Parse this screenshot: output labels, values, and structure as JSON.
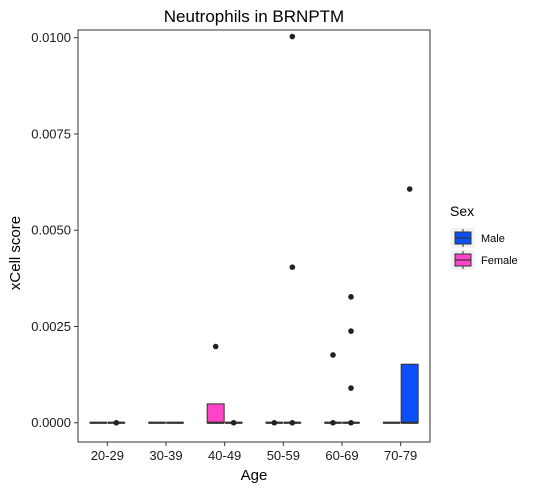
{
  "chart_data": {
    "type": "boxplot",
    "title": "Neutrophils in BRNPTM",
    "xlabel": "Age",
    "ylabel": "xCell score",
    "categories": [
      "20-29",
      "30-39",
      "40-49",
      "50-59",
      "60-69",
      "70-79"
    ],
    "ylim": [
      -0.0005,
      0.0102
    ],
    "yticks": [
      0.0,
      0.0025,
      0.005,
      0.0075,
      0.01
    ],
    "ytick_labels": [
      "0.0000",
      "0.0025",
      "0.0050",
      "0.0075",
      "0.0100"
    ],
    "grid": false,
    "legend": {
      "title": "Sex",
      "placement": "right",
      "entries": [
        {
          "name": "Male",
          "color": "#0B4FFF"
        },
        {
          "name": "Female",
          "color": "#FF44C8"
        }
      ]
    },
    "series": [
      {
        "name": "Female",
        "color": "#FF44C8",
        "boxes": [
          {
            "category": "20-29",
            "q1": 0,
            "median": 0,
            "q3": 0,
            "whisker_low": 0,
            "whisker_high": 0,
            "outliers": []
          },
          {
            "category": "30-39",
            "q1": 0,
            "median": 0,
            "q3": 0,
            "whisker_low": 0,
            "whisker_high": 0,
            "outliers": []
          },
          {
            "category": "40-49",
            "q1": 0,
            "median": 0,
            "q3": 0.00049,
            "whisker_low": 0,
            "whisker_high": 0.00049,
            "outliers": [
              0.00198
            ]
          },
          {
            "category": "50-59",
            "q1": 0,
            "median": 0,
            "q3": 0,
            "whisker_low": 0,
            "whisker_high": 0,
            "outliers": [
              0
            ]
          },
          {
            "category": "60-69",
            "q1": 0,
            "median": 0,
            "q3": 0,
            "whisker_low": 0,
            "whisker_high": 0,
            "outliers": [
              0.00176,
              0
            ]
          },
          {
            "category": "70-79",
            "q1": 0,
            "median": 0,
            "q3": 0,
            "whisker_low": 0,
            "whisker_high": 0,
            "outliers": []
          }
        ]
      },
      {
        "name": "Male",
        "color": "#0B4FFF",
        "boxes": [
          {
            "category": "20-29",
            "q1": 0,
            "median": 0,
            "q3": 0,
            "whisker_low": 0,
            "whisker_high": 0,
            "outliers": [
              0
            ]
          },
          {
            "category": "30-39",
            "q1": 0,
            "median": 0,
            "q3": 0,
            "whisker_low": 0,
            "whisker_high": 0,
            "outliers": []
          },
          {
            "category": "40-49",
            "q1": 0,
            "median": 0,
            "q3": 0,
            "whisker_low": 0,
            "whisker_high": 0,
            "outliers": [
              0
            ]
          },
          {
            "category": "50-59",
            "q1": 0,
            "median": 0,
            "q3": 0,
            "whisker_low": 0,
            "whisker_high": 0,
            "outliers": [
              0.01003,
              0.00404,
              0
            ]
          },
          {
            "category": "60-69",
            "q1": 0,
            "median": 0,
            "q3": 0,
            "whisker_low": 0,
            "whisker_high": 0,
            "outliers": [
              0.00327,
              0.00238,
              0.0009,
              0
            ]
          },
          {
            "category": "70-79",
            "q1": 0,
            "median": 0,
            "q3": 0.00152,
            "whisker_low": 0,
            "whisker_high": 0.00152,
            "outliers": [
              0.00607
            ]
          }
        ]
      }
    ]
  }
}
